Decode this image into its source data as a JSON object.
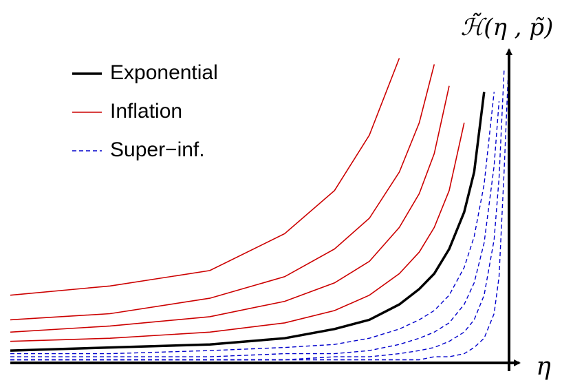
{
  "chart_data": {
    "type": "line",
    "x_label": "η",
    "y_label": "ℋ̃(η , p̃)",
    "xlim": [
      0,
      1
    ],
    "ylim": [
      0,
      1
    ],
    "x": [
      0,
      0.2,
      0.4,
      0.55,
      0.65,
      0.72,
      0.78,
      0.82,
      0.85,
      0.88,
      0.91,
      0.93,
      0.95,
      0.97,
      0.98,
      0.99,
      1.0
    ],
    "series": [
      {
        "name": "Exponential",
        "color": "#000000",
        "dash": "none",
        "width": 3.5,
        "curves": [
          [
            0.04,
            0.05,
            0.06,
            0.08,
            0.11,
            0.14,
            0.19,
            0.24,
            0.29,
            0.37,
            0.49,
            0.62,
            0.88,
            null,
            null,
            null,
            null
          ]
        ]
      },
      {
        "name": "Inflation",
        "color": "#cc0000",
        "dash": "none",
        "width": 1.6,
        "curves": [
          [
            0.22,
            0.25,
            0.3,
            0.42,
            0.56,
            0.74,
            0.99,
            null,
            null,
            null,
            null,
            null,
            null,
            null,
            null,
            null,
            null
          ],
          [
            0.14,
            0.16,
            0.21,
            0.28,
            0.37,
            0.47,
            0.62,
            0.78,
            0.97,
            null,
            null,
            null,
            null,
            null,
            null,
            null,
            null
          ],
          [
            0.1,
            0.12,
            0.15,
            0.2,
            0.26,
            0.33,
            0.44,
            0.55,
            0.68,
            0.9,
            null,
            null,
            null,
            null,
            null,
            null,
            null
          ],
          [
            0.07,
            0.08,
            0.1,
            0.13,
            0.17,
            0.22,
            0.29,
            0.36,
            0.44,
            0.56,
            0.78,
            null,
            null,
            null,
            null,
            null,
            null
          ]
        ]
      },
      {
        "name": "Super−inf.",
        "color": "#0000cc",
        "dash": "6,4",
        "width": 1.4,
        "curves": [
          [
            0.03,
            0.03,
            0.04,
            0.05,
            0.06,
            0.08,
            0.11,
            0.14,
            0.17,
            0.22,
            0.31,
            0.41,
            0.58,
            0.88,
            null,
            null,
            null
          ],
          [
            0.02,
            0.02,
            0.02,
            0.03,
            0.03,
            0.04,
            0.06,
            0.08,
            0.1,
            0.13,
            0.19,
            0.26,
            0.39,
            0.64,
            0.85,
            null,
            null
          ],
          [
            0.01,
            0.01,
            0.01,
            0.01,
            0.02,
            0.02,
            0.03,
            0.04,
            0.05,
            0.07,
            0.1,
            0.14,
            0.22,
            0.4,
            0.6,
            0.95,
            null
          ],
          [
            0.01,
            0.01,
            0.01,
            0.01,
            0.01,
            0.01,
            0.01,
            0.01,
            0.02,
            0.02,
            0.03,
            0.05,
            0.08,
            0.16,
            0.28,
            0.62,
            1.0
          ]
        ]
      }
    ]
  }
}
